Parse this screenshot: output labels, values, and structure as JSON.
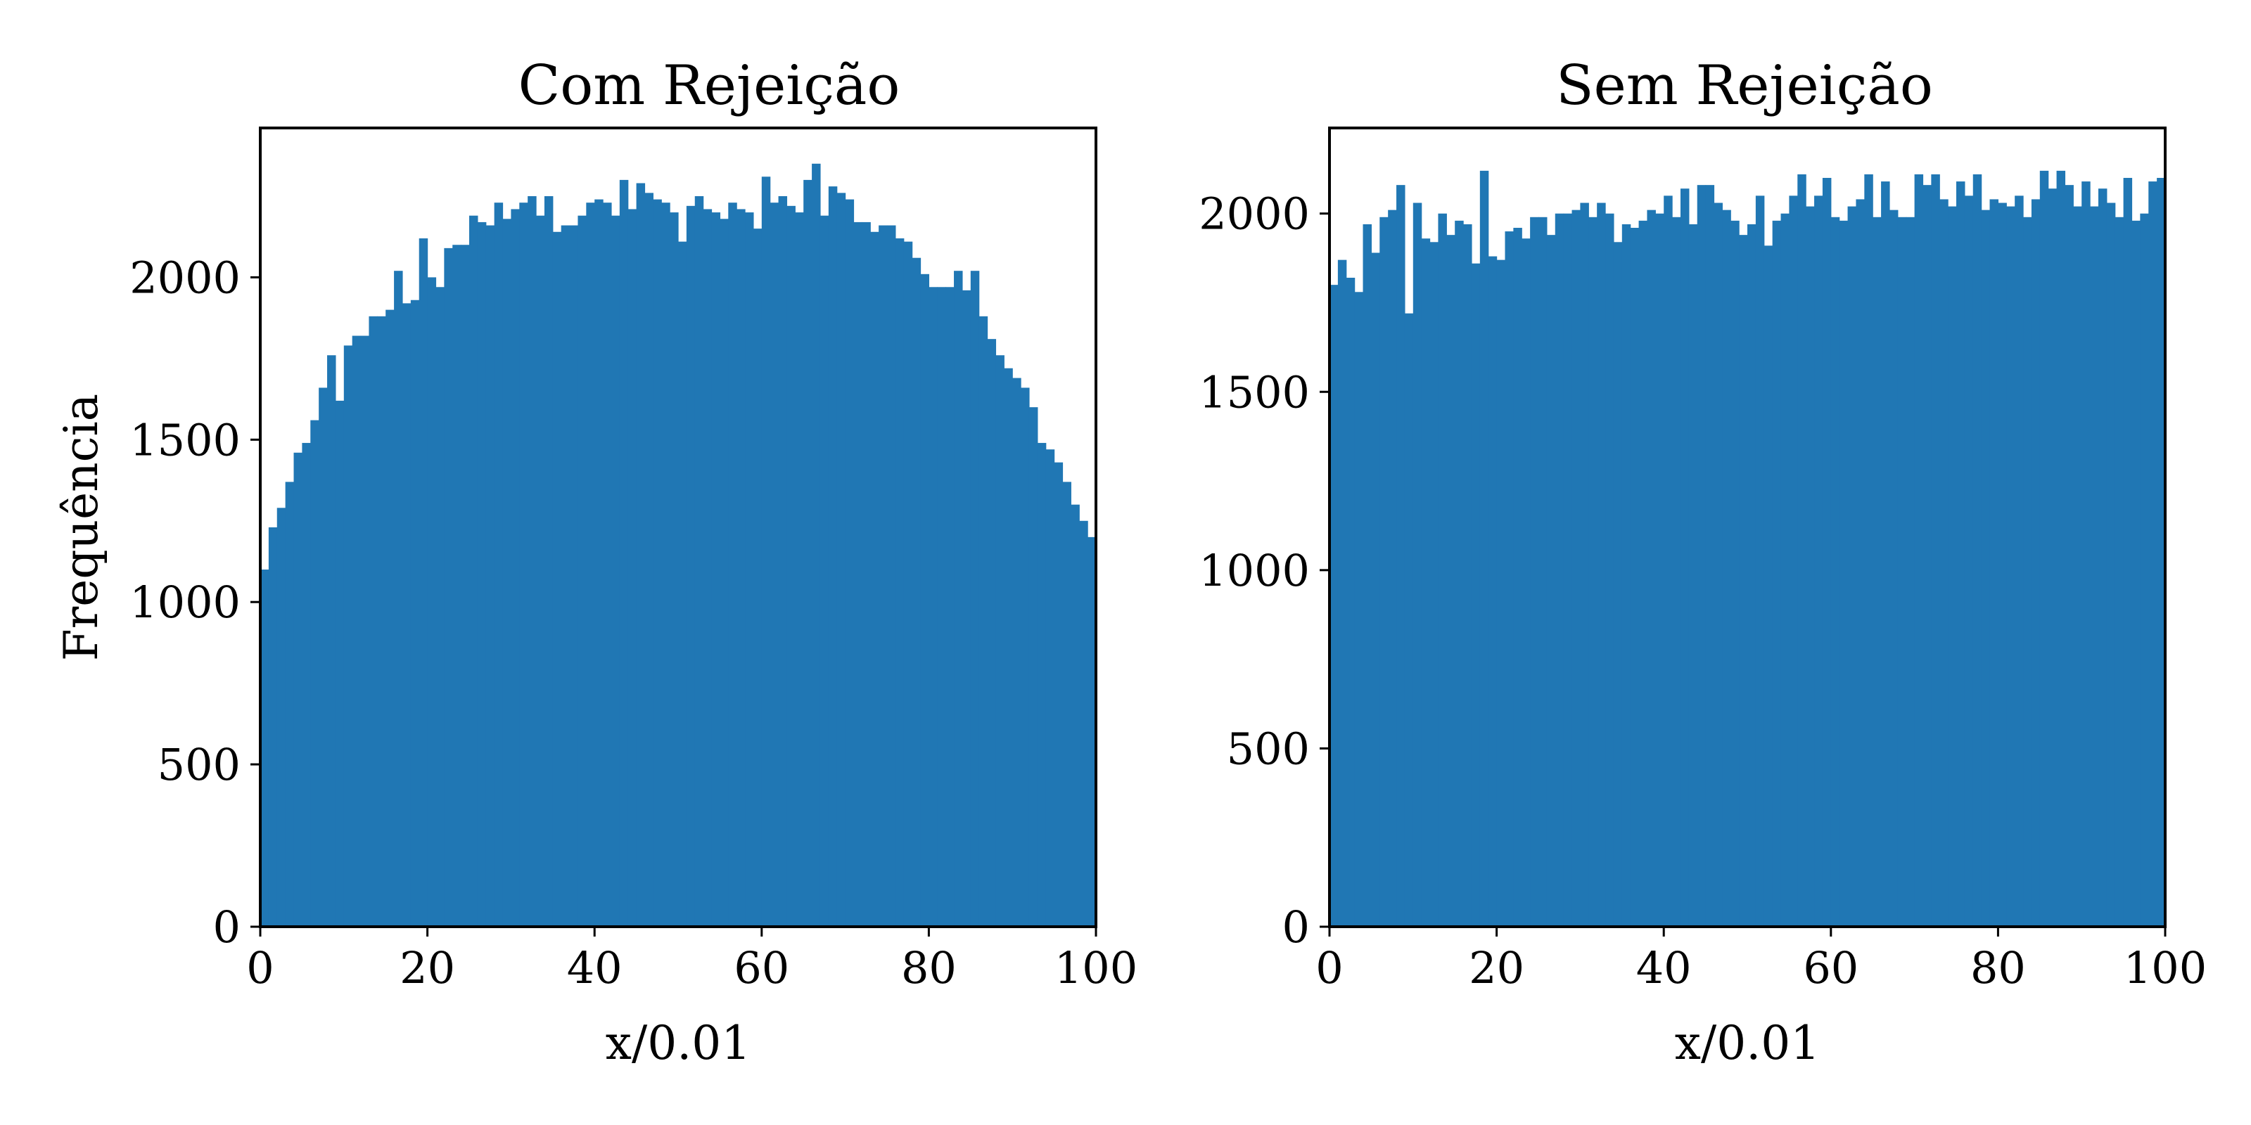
{
  "bar_color": "#2077b4",
  "chart_data": [
    {
      "type": "bar",
      "title": "Com Rejeição",
      "xlabel": "x/0.01",
      "ylabel": "Frequência",
      "xlim": [
        0,
        100
      ],
      "ylim": [
        0,
        2460
      ],
      "xticks": [
        "0",
        "20",
        "40",
        "60",
        "80",
        "100"
      ],
      "xtick_values": [
        0,
        20,
        40,
        60,
        80,
        100
      ],
      "yticks": [
        "0",
        "500",
        "1000",
        "1500",
        "2000"
      ],
      "ytick_values": [
        0,
        500,
        1000,
        1500,
        2000
      ],
      "bin_start": 0,
      "bin_width": 1,
      "values": [
        1100,
        1230,
        1290,
        1370,
        1460,
        1490,
        1560,
        1660,
        1760,
        1620,
        1790,
        1820,
        1820,
        1880,
        1880,
        1900,
        2020,
        1920,
        1930,
        2120,
        2000,
        1970,
        2090,
        2100,
        2100,
        2190,
        2170,
        2160,
        2230,
        2180,
        2210,
        2230,
        2250,
        2190,
        2250,
        2140,
        2160,
        2160,
        2190,
        2230,
        2240,
        2230,
        2190,
        2300,
        2210,
        2290,
        2260,
        2240,
        2230,
        2200,
        2110,
        2220,
        2250,
        2210,
        2200,
        2180,
        2230,
        2210,
        2200,
        2150,
        2310,
        2230,
        2250,
        2220,
        2200,
        2300,
        2350,
        2190,
        2280,
        2260,
        2240,
        2170,
        2170,
        2140,
        2160,
        2160,
        2120,
        2110,
        2060,
        2010,
        1970,
        1970,
        1970,
        2020,
        1960,
        2020,
        1880,
        1810,
        1760,
        1720,
        1690,
        1660,
        1600,
        1490,
        1470,
        1430,
        1370,
        1300,
        1250,
        1200
      ]
    },
    {
      "type": "bar",
      "title": "Sem Rejeição",
      "xlabel": "x/0.01",
      "ylabel": "",
      "xlim": [
        0,
        100
      ],
      "ylim": [
        0,
        2240
      ],
      "xticks": [
        "0",
        "20",
        "40",
        "60",
        "80",
        "100"
      ],
      "xtick_values": [
        0,
        20,
        40,
        60,
        80,
        100
      ],
      "yticks": [
        "0",
        "500",
        "1000",
        "1500",
        "2000"
      ],
      "ytick_values": [
        0,
        500,
        1000,
        1500,
        2000
      ],
      "bin_start": 0,
      "bin_width": 1,
      "values": [
        1800,
        1870,
        1820,
        1780,
        1970,
        1890,
        1990,
        2010,
        2080,
        1720,
        2030,
        1930,
        1920,
        2000,
        1940,
        1980,
        1970,
        1860,
        2120,
        1880,
        1870,
        1950,
        1960,
        1930,
        1990,
        1990,
        1940,
        2000,
        2000,
        2010,
        2030,
        1990,
        2030,
        2000,
        1920,
        1970,
        1960,
        1980,
        2010,
        2000,
        2050,
        1990,
        2070,
        1970,
        2080,
        2080,
        2030,
        2010,
        1980,
        1940,
        1970,
        2050,
        1910,
        1980,
        2000,
        2050,
        2110,
        2020,
        2050,
        2100,
        1990,
        1980,
        2020,
        2040,
        2110,
        1990,
        2090,
        2010,
        1990,
        1990,
        2110,
        2080,
        2110,
        2040,
        2020,
        2090,
        2050,
        2110,
        2010,
        2040,
        2030,
        2020,
        2050,
        1990,
        2040,
        2120,
        2070,
        2120,
        2080,
        2020,
        2090,
        2020,
        2070,
        2030,
        1990,
        2100,
        1980,
        2000,
        2090,
        2100
      ]
    }
  ]
}
